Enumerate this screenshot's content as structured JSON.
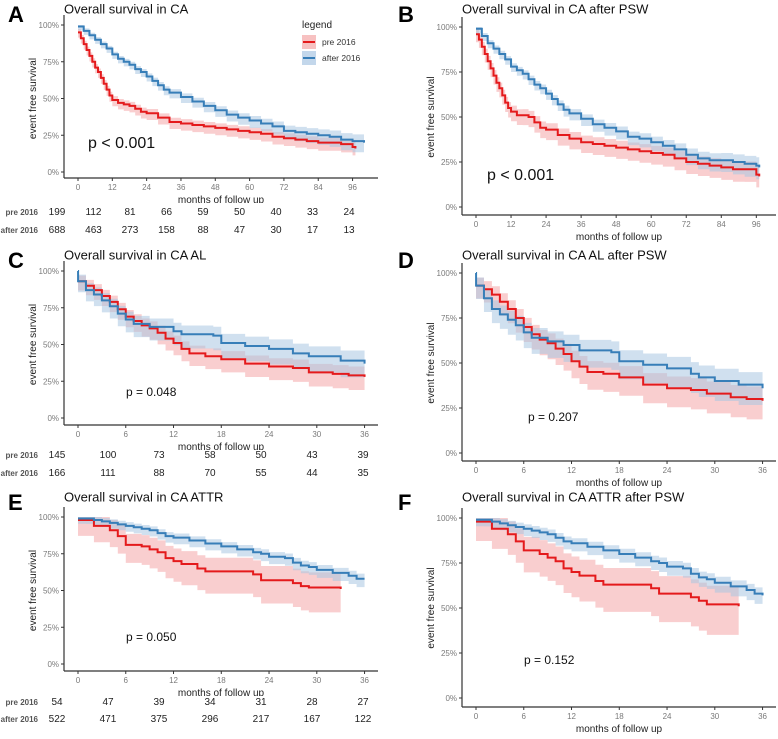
{
  "colors": {
    "pre_2016": "#E41A1C",
    "after_2016": "#377EB8",
    "pre_2016_band": "#F4A6A7",
    "after_2016_band": "#A9C6E2"
  },
  "chart_data": [
    {
      "id": "A",
      "type": "line",
      "subtype": "kaplan-meier",
      "letter": "A",
      "title": "Overall survival in CA",
      "xlabel": "months of follow up",
      "ylabel": "event free survival",
      "xlim": [
        0,
        100
      ],
      "ylim": [
        0,
        1
      ],
      "xticks": [
        0,
        12,
        24,
        36,
        48,
        60,
        72,
        84,
        96
      ],
      "yticks": [
        "0%",
        "25%",
        "50%",
        "75%",
        "100%"
      ],
      "pvalue": "p < 0.001",
      "pvalue_large": true,
      "legend": {
        "title": "legend",
        "placement": "top-right",
        "entries": [
          "pre 2016",
          "after 2016"
        ]
      },
      "series": [
        {
          "name": "pre 2016",
          "x": [
            0,
            1,
            2,
            3,
            4,
            5,
            6,
            7,
            8,
            9,
            10,
            11,
            12,
            14,
            16,
            18,
            20,
            22,
            24,
            28,
            32,
            36,
            40,
            44,
            48,
            52,
            56,
            60,
            64,
            68,
            72,
            76,
            80,
            84,
            88,
            92,
            96,
            97
          ],
          "y": [
            0.95,
            0.91,
            0.87,
            0.83,
            0.79,
            0.75,
            0.71,
            0.68,
            0.64,
            0.6,
            0.56,
            0.52,
            0.49,
            0.47,
            0.46,
            0.45,
            0.43,
            0.41,
            0.4,
            0.37,
            0.34,
            0.33,
            0.32,
            0.31,
            0.3,
            0.29,
            0.28,
            0.27,
            0.26,
            0.24,
            0.23,
            0.22,
            0.21,
            0.2,
            0.2,
            0.19,
            0.17,
            0.16
          ],
          "ci_width": 0.04
        },
        {
          "name": "after 2016",
          "x": [
            0,
            2,
            4,
            6,
            8,
            10,
            12,
            14,
            16,
            18,
            20,
            22,
            24,
            26,
            28,
            30,
            32,
            36,
            40,
            44,
            48,
            52,
            56,
            60,
            64,
            68,
            72,
            76,
            80,
            84,
            88,
            92,
            96,
            100
          ],
          "y": [
            0.99,
            0.96,
            0.93,
            0.9,
            0.87,
            0.84,
            0.8,
            0.77,
            0.75,
            0.73,
            0.7,
            0.68,
            0.65,
            0.62,
            0.59,
            0.56,
            0.54,
            0.51,
            0.48,
            0.45,
            0.42,
            0.39,
            0.37,
            0.35,
            0.33,
            0.31,
            0.28,
            0.27,
            0.26,
            0.25,
            0.24,
            0.22,
            0.21,
            0.2
          ],
          "ci_width": 0.03,
          "ci_end_width": 0.07
        }
      ],
      "risk_table": {
        "rows": [
          {
            "label": "pre 2016",
            "values": [
              199,
              112,
              81,
              66,
              59,
              50,
              40,
              33,
              24
            ]
          },
          {
            "label": "after 2016",
            "values": [
              688,
              463,
              273,
              158,
              88,
              47,
              30,
              17,
              13
            ]
          }
        ]
      }
    },
    {
      "id": "B",
      "type": "line",
      "subtype": "kaplan-meier",
      "letter": "B",
      "title": "Overall survival in CA after PSW",
      "xlabel": "months of follow up",
      "ylabel": "event free survival",
      "xlim": [
        0,
        100
      ],
      "ylim": [
        0,
        1
      ],
      "xticks": [
        0,
        12,
        24,
        36,
        48,
        60,
        72,
        84,
        96
      ],
      "yticks": [
        "0%",
        "25%",
        "50%",
        "75%",
        "100%"
      ],
      "pvalue": "p < 0.001",
      "pvalue_large": true,
      "series": [
        {
          "name": "pre 2016",
          "x": [
            0,
            1,
            2,
            3,
            4,
            5,
            6,
            7,
            8,
            9,
            10,
            11,
            12,
            14,
            16,
            18,
            20,
            22,
            24,
            28,
            32,
            36,
            40,
            44,
            48,
            52,
            56,
            60,
            64,
            68,
            72,
            76,
            80,
            84,
            88,
            92,
            96,
            97
          ],
          "y": [
            0.96,
            0.93,
            0.89,
            0.85,
            0.81,
            0.77,
            0.73,
            0.69,
            0.66,
            0.62,
            0.58,
            0.55,
            0.53,
            0.51,
            0.51,
            0.5,
            0.47,
            0.44,
            0.43,
            0.4,
            0.38,
            0.36,
            0.35,
            0.34,
            0.33,
            0.32,
            0.31,
            0.3,
            0.29,
            0.27,
            0.25,
            0.24,
            0.23,
            0.22,
            0.21,
            0.21,
            0.18,
            0.17
          ],
          "ci_width": 0.05
        },
        {
          "name": "after 2016",
          "x": [
            0,
            2,
            4,
            6,
            8,
            10,
            12,
            14,
            16,
            18,
            20,
            22,
            24,
            26,
            28,
            30,
            32,
            36,
            40,
            44,
            48,
            52,
            56,
            60,
            64,
            68,
            72,
            76,
            80,
            84,
            88,
            92,
            96,
            97
          ],
          "y": [
            0.99,
            0.95,
            0.91,
            0.88,
            0.85,
            0.82,
            0.78,
            0.76,
            0.74,
            0.71,
            0.68,
            0.66,
            0.63,
            0.6,
            0.57,
            0.54,
            0.52,
            0.49,
            0.46,
            0.44,
            0.42,
            0.39,
            0.38,
            0.36,
            0.34,
            0.32,
            0.29,
            0.27,
            0.26,
            0.26,
            0.25,
            0.24,
            0.23,
            0.22
          ],
          "ci_width": 0.03,
          "ci_end_width": 0.07
        }
      ]
    },
    {
      "id": "C",
      "type": "line",
      "subtype": "kaplan-meier",
      "letter": "C",
      "title": "Overall survival in CA AL",
      "xlabel": "months of follow up",
      "ylabel": "event free survival",
      "xlim": [
        0,
        37
      ],
      "ylim": [
        0,
        1
      ],
      "xticks": [
        0,
        6,
        12,
        18,
        24,
        30,
        36
      ],
      "yticks": [
        "0%",
        "25%",
        "50%",
        "75%",
        "100%"
      ],
      "pvalue": "p = 0.048",
      "pvalue_large": false,
      "series": [
        {
          "name": "pre 2016",
          "x": [
            0,
            1,
            2,
            3,
            4,
            5,
            6,
            7,
            8,
            9,
            10,
            11,
            12,
            13,
            14,
            16,
            18,
            21,
            24,
            27,
            29,
            32,
            34,
            36
          ],
          "y": [
            0.93,
            0.9,
            0.87,
            0.83,
            0.79,
            0.74,
            0.69,
            0.66,
            0.63,
            0.61,
            0.58,
            0.54,
            0.51,
            0.47,
            0.44,
            0.42,
            0.4,
            0.37,
            0.35,
            0.34,
            0.31,
            0.3,
            0.29,
            0.28
          ],
          "ci_width": 0.07
        },
        {
          "name": "after 2016",
          "x": [
            0,
            0.01,
            1,
            2,
            3,
            4,
            5,
            6,
            7,
            9,
            12,
            13,
            17,
            18,
            21,
            24,
            27,
            29,
            33,
            36
          ],
          "y": [
            1.0,
            0.93,
            0.87,
            0.84,
            0.8,
            0.76,
            0.71,
            0.67,
            0.64,
            0.62,
            0.59,
            0.57,
            0.56,
            0.51,
            0.49,
            0.47,
            0.44,
            0.42,
            0.39,
            0.37
          ],
          "ci_width": 0.08
        }
      ],
      "risk_table": {
        "rows": [
          {
            "label": "pre 2016",
            "values": [
              145,
              100,
              73,
              58,
              50,
              43,
              39
            ]
          },
          {
            "label": "after 2016",
            "values": [
              166,
              111,
              88,
              70,
              55,
              44,
              35
            ]
          }
        ]
      }
    },
    {
      "id": "D",
      "type": "line",
      "subtype": "kaplan-meier",
      "letter": "D",
      "title": "Overall survival in CA AL after PSW",
      "xlabel": "months of follow up",
      "ylabel": "event free survival",
      "xlim": [
        0,
        37
      ],
      "ylim": [
        0,
        1
      ],
      "xticks": [
        0,
        6,
        12,
        18,
        24,
        30,
        36
      ],
      "yticks": [
        "0%",
        "25%",
        "50%",
        "75%",
        "100%"
      ],
      "pvalue": "p = 0.207",
      "pvalue_large": false,
      "series": [
        {
          "name": "pre 2016",
          "x": [
            0,
            1,
            2,
            3,
            4,
            5,
            6,
            7,
            8,
            9,
            10,
            11,
            12,
            13,
            14,
            16,
            18,
            21,
            24,
            27,
            29,
            32,
            34,
            36
          ],
          "y": [
            0.93,
            0.91,
            0.88,
            0.84,
            0.8,
            0.75,
            0.7,
            0.66,
            0.63,
            0.61,
            0.58,
            0.55,
            0.51,
            0.48,
            0.45,
            0.44,
            0.42,
            0.38,
            0.36,
            0.35,
            0.33,
            0.31,
            0.3,
            0.29
          ],
          "ci_width": 0.08
        },
        {
          "name": "after 2016",
          "x": [
            0,
            0.01,
            1,
            2,
            3,
            4,
            5,
            6,
            7,
            9,
            11,
            13,
            17,
            18,
            21,
            24,
            27,
            28,
            30,
            33,
            36
          ],
          "y": [
            1.0,
            0.93,
            0.86,
            0.8,
            0.77,
            0.74,
            0.71,
            0.67,
            0.64,
            0.62,
            0.6,
            0.57,
            0.56,
            0.51,
            0.49,
            0.47,
            0.44,
            0.42,
            0.4,
            0.38,
            0.36
          ],
          "ci_width": 0.08
        }
      ]
    },
    {
      "id": "E",
      "type": "line",
      "subtype": "kaplan-meier",
      "letter": "E",
      "title": "Overall survival in CA ATTR",
      "xlabel": "months of follow up",
      "ylabel": "event free survival",
      "xlim": [
        0,
        37
      ],
      "ylim": [
        0,
        1
      ],
      "xticks": [
        0,
        6,
        12,
        18,
        24,
        30,
        36
      ],
      "yticks": [
        "0%",
        "25%",
        "50%",
        "75%",
        "100%"
      ],
      "pvalue": "p = 0.050",
      "pvalue_large": false,
      "series": [
        {
          "name": "pre 2016",
          "x": [
            0,
            2,
            4,
            5,
            6,
            8,
            9,
            10,
            11,
            12,
            13,
            15,
            16,
            22,
            23,
            27,
            28,
            29,
            33
          ],
          "y": [
            0.98,
            0.94,
            0.91,
            0.87,
            0.81,
            0.8,
            0.78,
            0.76,
            0.72,
            0.7,
            0.68,
            0.65,
            0.63,
            0.61,
            0.57,
            0.55,
            0.53,
            0.52,
            0.51
          ],
          "ci_width": 0.12
        },
        {
          "name": "after 2016",
          "x": [
            0,
            1,
            2,
            3,
            4,
            5,
            6,
            7,
            8,
            9,
            10,
            11,
            12,
            14,
            16,
            18,
            20,
            22,
            23,
            24,
            26,
            27,
            28,
            29,
            30,
            32,
            34,
            35,
            36
          ],
          "y": [
            0.99,
            0.99,
            0.98,
            0.97,
            0.96,
            0.95,
            0.94,
            0.93,
            0.92,
            0.91,
            0.89,
            0.87,
            0.86,
            0.84,
            0.82,
            0.8,
            0.78,
            0.76,
            0.75,
            0.73,
            0.72,
            0.69,
            0.67,
            0.66,
            0.64,
            0.62,
            0.6,
            0.58,
            0.58
          ],
          "ci_width": 0.04
        }
      ],
      "risk_table": {
        "rows": [
          {
            "label": "pre 2016",
            "values": [
              54,
              47,
              39,
              34,
              31,
              28,
              27
            ]
          },
          {
            "label": "after 2016",
            "values": [
              522,
              471,
              375,
              296,
              217,
              167,
              122
            ]
          }
        ]
      }
    },
    {
      "id": "F",
      "type": "line",
      "subtype": "kaplan-meier",
      "letter": "F",
      "title": "Overall survival in CA ATTR after PSW",
      "xlabel": "months of follow up",
      "ylabel": "event free survival",
      "xlim": [
        0,
        37
      ],
      "ylim": [
        0,
        1
      ],
      "xticks": [
        0,
        6,
        12,
        18,
        24,
        30,
        36
      ],
      "yticks": [
        "0%",
        "25%",
        "50%",
        "75%",
        "100%"
      ],
      "pvalue": "p = 0.152",
      "pvalue_large": false,
      "series": [
        {
          "name": "pre 2016",
          "x": [
            0,
            2,
            4,
            5,
            6,
            8,
            9,
            10,
            11,
            12,
            13,
            15,
            16,
            22,
            23,
            27,
            28,
            29,
            33
          ],
          "y": [
            0.98,
            0.94,
            0.91,
            0.87,
            0.82,
            0.8,
            0.78,
            0.76,
            0.72,
            0.7,
            0.68,
            0.65,
            0.63,
            0.61,
            0.58,
            0.56,
            0.54,
            0.52,
            0.51
          ],
          "ci_width": 0.12
        },
        {
          "name": "after 2016",
          "x": [
            0,
            1,
            2,
            3,
            4,
            5,
            6,
            7,
            8,
            9,
            10,
            11,
            12,
            14,
            16,
            18,
            20,
            22,
            23,
            24,
            26,
            27,
            28,
            29,
            30,
            32,
            34,
            35,
            36
          ],
          "y": [
            0.99,
            0.99,
            0.98,
            0.97,
            0.96,
            0.95,
            0.94,
            0.93,
            0.92,
            0.91,
            0.89,
            0.87,
            0.86,
            0.84,
            0.82,
            0.8,
            0.78,
            0.76,
            0.75,
            0.73,
            0.72,
            0.69,
            0.67,
            0.66,
            0.64,
            0.62,
            0.6,
            0.58,
            0.57
          ],
          "ci_width": 0.04
        }
      ]
    }
  ]
}
